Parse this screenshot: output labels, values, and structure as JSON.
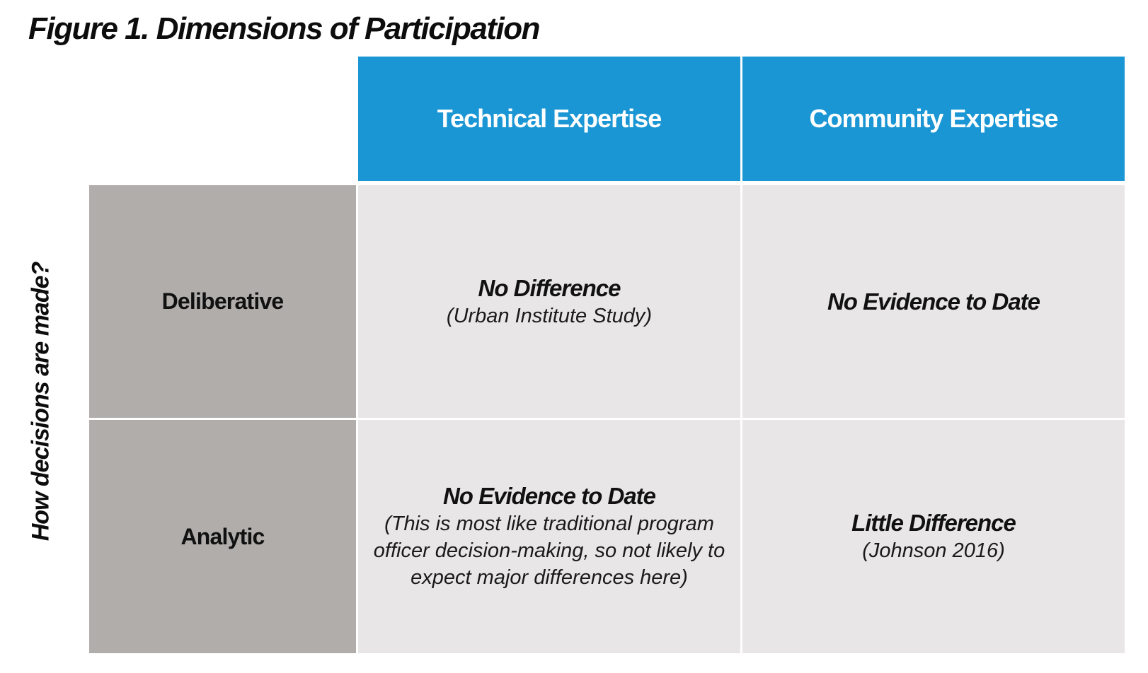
{
  "figure": {
    "title": "Figure 1. Dimensions of Participation",
    "side_label": "How decisions are made?",
    "columns": [
      {
        "label": "Technical Expertise"
      },
      {
        "label": "Community Expertise"
      }
    ],
    "rows": [
      {
        "label": "Deliberative",
        "cells": [
          {
            "heading": "No Difference",
            "note": "(Urban Institute Study)"
          },
          {
            "heading": "No Evidence to Date",
            "note": ""
          }
        ]
      },
      {
        "label": "Analytic",
        "cells": [
          {
            "heading": "No Evidence to Date",
            "note": "(This is most like traditional program officer decision-making, so not likely to expect major differences here)"
          },
          {
            "heading": "Little Difference",
            "note": "(Johnson 2016)"
          }
        ]
      }
    ],
    "colors": {
      "column_header_bg": "#1a96d4",
      "row_header_bg": "#b0adab",
      "cell_bg": "#e8e6e6"
    }
  }
}
